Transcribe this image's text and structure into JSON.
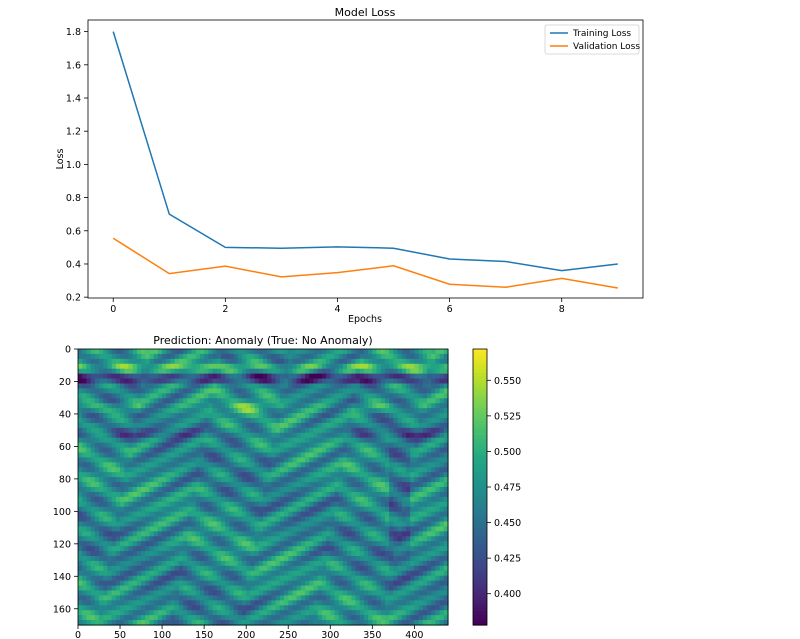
{
  "chart_data": [
    {
      "type": "line",
      "title": "Model Loss",
      "xlabel": "Epochs",
      "ylabel": "Loss",
      "xlim": [
        -0.45,
        9.45
      ],
      "ylim": [
        0.195,
        1.87
      ],
      "xticks": [
        0,
        2,
        4,
        6,
        8
      ],
      "yticks": [
        0.2,
        0.4,
        0.6,
        0.8,
        1.0,
        1.2,
        1.4,
        1.6,
        1.8
      ],
      "ytick_labels": [
        "0.2",
        "0.4",
        "0.6",
        "0.8",
        "1.0",
        "1.2",
        "1.4",
        "1.6",
        "1.8"
      ],
      "x": [
        0,
        1,
        2,
        3,
        4,
        5,
        6,
        7,
        8,
        9
      ],
      "legend_position": "upper-right",
      "grid": false,
      "series": [
        {
          "name": "Training Loss",
          "color": "#1f77b4",
          "values": [
            1.8,
            0.7,
            0.5,
            0.495,
            0.503,
            0.495,
            0.43,
            0.415,
            0.36,
            0.4
          ]
        },
        {
          "name": "Validation Loss",
          "color": "#ff7f0e",
          "values": [
            0.555,
            0.342,
            0.387,
            0.322,
            0.348,
            0.389,
            0.278,
            0.26,
            0.313,
            0.255
          ]
        }
      ]
    },
    {
      "type": "heatmap",
      "title": "Prediction: Anomaly (True: No Anomaly)",
      "colormap": "viridis",
      "xlim": [
        0,
        440
      ],
      "ylim": [
        170,
        0
      ],
      "xticks": [
        0,
        50,
        100,
        150,
        200,
        250,
        300,
        350,
        400
      ],
      "yticks": [
        0,
        20,
        40,
        60,
        80,
        100,
        120,
        140,
        160
      ],
      "colorbar": {
        "range": [
          0.378,
          0.572
        ],
        "ticks": [
          0.4,
          0.425,
          0.45,
          0.475,
          0.5,
          0.525,
          0.55
        ],
        "tick_labels": [
          "0.400",
          "0.425",
          "0.450",
          "0.475",
          "0.500",
          "0.525",
          "0.550"
        ]
      }
    }
  ]
}
